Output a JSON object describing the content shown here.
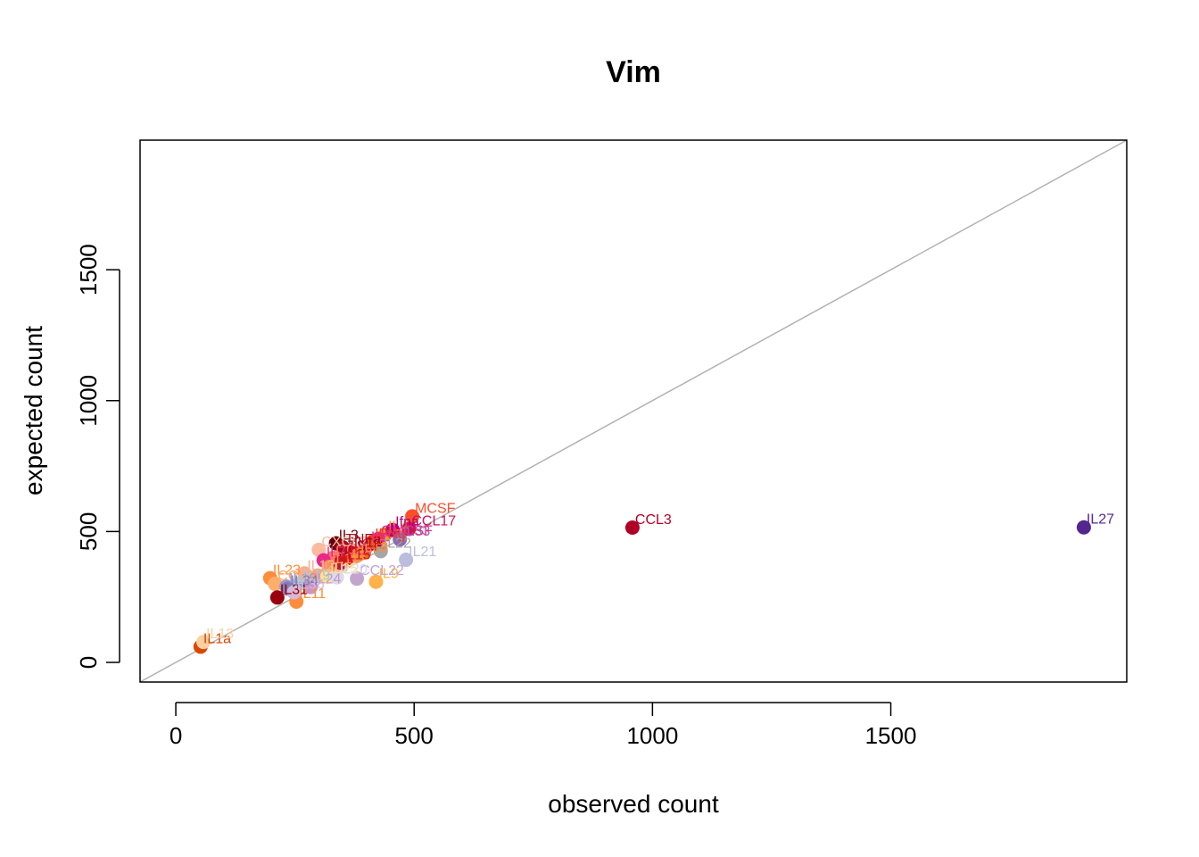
{
  "chart_data": {
    "type": "scatter",
    "title": "Vim",
    "xlabel": "observed count",
    "ylabel": "expected count",
    "xlim": [
      -75,
      1995
    ],
    "ylim": [
      -75,
      1995
    ],
    "xticks": [
      0,
      500,
      1000,
      1500
    ],
    "xtick_labels": [
      "0",
      "500",
      "1000",
      "1500"
    ],
    "yticks": [
      0,
      500,
      1000,
      1500
    ],
    "ytick_labels": [
      "0",
      "500",
      "1000",
      "1500"
    ],
    "reference_line": "y = x",
    "reference_line_color": "#b3b3b3",
    "grid": false,
    "legend": "none",
    "points": [
      {
        "label": "IL27",
        "x": 1905,
        "y": 516,
        "color": "#54278f"
      },
      {
        "label": "CCL3",
        "x": 958,
        "y": 515,
        "color": "#b10026"
      },
      {
        "label": "MCSF",
        "x": 496,
        "y": 558,
        "color": "#fc4e2a"
      },
      {
        "label": "CCL17",
        "x": 489,
        "y": 510,
        "color": "#ce1256"
      },
      {
        "label": "IL21",
        "x": 483,
        "y": 392,
        "color": "#bcbddc"
      },
      {
        "label": "IL9",
        "x": 420,
        "y": 308,
        "color": "#feb24c"
      },
      {
        "label": "CCL22",
        "x": 380,
        "y": 320,
        "color": "#c2a5cf"
      },
      {
        "label": "IL3",
        "x": 336,
        "y": 455,
        "color": "#67000d"
      },
      {
        "label": "IL11",
        "x": 253,
        "y": 232,
        "color": "#fd8d3c"
      },
      {
        "label": "IL1a",
        "x": 52,
        "y": 60,
        "color": "#d94801"
      },
      {
        "label": "IL13",
        "x": 58,
        "y": 78,
        "color": "#fdd0a2"
      },
      {
        "label": "TSLP",
        "x": 355,
        "y": 415,
        "color": "#800026"
      },
      {
        "label": "IL2",
        "x": 360,
        "y": 398,
        "color": "#e31a1c"
      },
      {
        "label": "IL5",
        "x": 395,
        "y": 420,
        "color": "#f16913"
      },
      {
        "label": "IL6",
        "x": 404,
        "y": 448,
        "color": "#dd3497"
      },
      {
        "label": "IL22",
        "x": 430,
        "y": 425,
        "color": "#a6a6a6"
      },
      {
        "label": "IL4",
        "x": 440,
        "y": 490,
        "color": "#fe9929"
      },
      {
        "label": "Ifna",
        "x": 455,
        "y": 506,
        "color": "#ae017e"
      },
      {
        "label": "IL33",
        "x": 470,
        "y": 470,
        "color": "#8c6bb1"
      },
      {
        "label": "CCL5",
        "x": 330,
        "y": 400,
        "color": "#ff6f6f"
      },
      {
        "label": "CXCL2",
        "x": 300,
        "y": 430,
        "color": "#fcbba1"
      },
      {
        "label": "IL7",
        "x": 310,
        "y": 390,
        "color": "#e7298a"
      },
      {
        "label": "IL10",
        "x": 322,
        "y": 365,
        "color": "#fc8d59"
      },
      {
        "label": "IL15",
        "x": 345,
        "y": 380,
        "color": "#cb181d"
      },
      {
        "label": "IL17",
        "x": 368,
        "y": 428,
        "color": "#bd0026"
      },
      {
        "label": "IL18",
        "x": 382,
        "y": 410,
        "color": "#fd8d3c"
      },
      {
        "label": "IL1b",
        "x": 298,
        "y": 332,
        "color": "#f4a582"
      },
      {
        "label": "IL25",
        "x": 318,
        "y": 328,
        "color": "#fee391"
      },
      {
        "label": "IL20",
        "x": 338,
        "y": 325,
        "color": "#dadaeb"
      },
      {
        "label": "IL12",
        "x": 270,
        "y": 340,
        "color": "#fcae91"
      },
      {
        "label": "IL23",
        "x": 198,
        "y": 322,
        "color": "#fd8d3c"
      },
      {
        "label": "CCL2",
        "x": 208,
        "y": 300,
        "color": "#fdae6b"
      },
      {
        "label": "IL16",
        "x": 232,
        "y": 290,
        "color": "#9e9ac8"
      },
      {
        "label": "IL19",
        "x": 260,
        "y": 302,
        "color": "#9ecae1"
      },
      {
        "label": "IL24",
        "x": 283,
        "y": 288,
        "color": "#c994c7"
      },
      {
        "label": "IL31",
        "x": 213,
        "y": 248,
        "color": "#99000d"
      },
      {
        "label": "IL34",
        "x": 235,
        "y": 282,
        "color": "#807dba"
      },
      {
        "label": "IL36",
        "x": 248,
        "y": 268,
        "color": "#d4b9da"
      },
      {
        "label": "TNFa",
        "x": 350,
        "y": 440,
        "color": "#a50f15"
      },
      {
        "label": "GMCSF",
        "x": 425,
        "y": 472,
        "color": "#e7298a"
      },
      {
        "label": "IFNg",
        "x": 412,
        "y": 460,
        "color": "#f03b20"
      }
    ]
  }
}
